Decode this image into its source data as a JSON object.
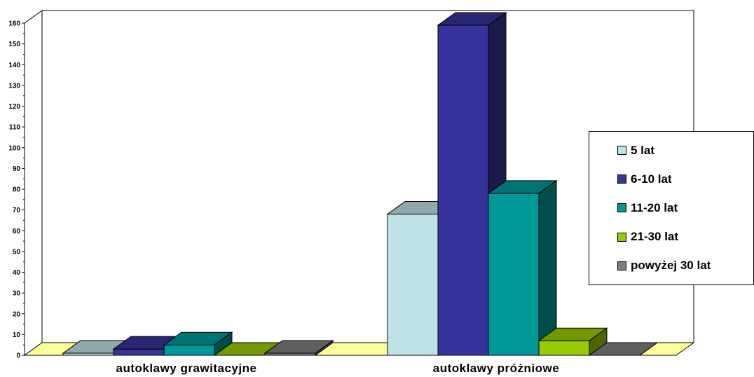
{
  "chart_data": {
    "type": "bar",
    "categories": [
      "autoklawy grawitacyjne",
      "autoklawy próżniowe"
    ],
    "series": [
      {
        "name": "5 lat",
        "color": "#BDE3E6",
        "values": [
          1,
          68
        ]
      },
      {
        "name": "6-10 lat",
        "color": "#36339A",
        "values": [
          3,
          159
        ]
      },
      {
        "name": "11-20 lat",
        "color": "#009999",
        "values": [
          5,
          78
        ]
      },
      {
        "name": "21-30 lat",
        "color": "#99CC00",
        "values": [
          0,
          7
        ]
      },
      {
        "name": "powyżej 30 lat",
        "color": "#7F7F7F",
        "values": [
          1,
          0
        ]
      }
    ],
    "y_ticks": [
      "0",
      "10",
      "20",
      "30",
      "40",
      "50",
      "60",
      "70",
      "80",
      "90",
      "100",
      "110",
      "120",
      "130",
      "140",
      "150",
      "160"
    ],
    "ylim": [
      0,
      160
    ],
    "legend_position": "right",
    "grid": false,
    "floor_color": "#FFFF99"
  }
}
